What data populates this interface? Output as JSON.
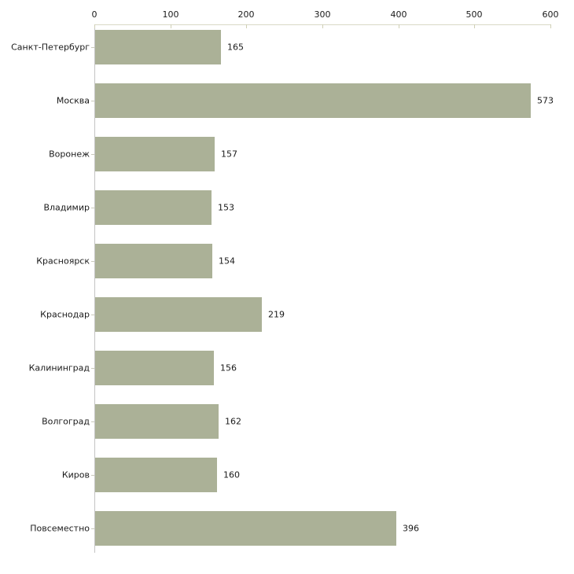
{
  "chart_data": {
    "type": "bar",
    "orientation": "horizontal",
    "title": "",
    "xlabel": "",
    "ylabel": "",
    "categories": [
      "Санкт-Петербург",
      "Москва",
      "Воронеж",
      "Владимир",
      "Красноярск",
      "Краснодар",
      "Калининград",
      "Волгоград",
      "Киров",
      "Повсеместно"
    ],
    "values": [
      165,
      573,
      157,
      153,
      154,
      219,
      156,
      162,
      160,
      396
    ],
    "xlim": [
      0,
      600
    ],
    "xticks": [
      0,
      100,
      200,
      300,
      400,
      500,
      600
    ],
    "xaxis_position": "top",
    "value_labels_shown": true,
    "grid": false,
    "legend": false,
    "colors": {
      "bar": "#abb197",
      "x_axis_line": "#d9d9c6",
      "x_tick": "#cfcfb5",
      "y_axis_line": "#c4c4c4",
      "category_tick": "#c9c9bb",
      "text": "#1a1a1a",
      "background": "#ffffff"
    }
  }
}
